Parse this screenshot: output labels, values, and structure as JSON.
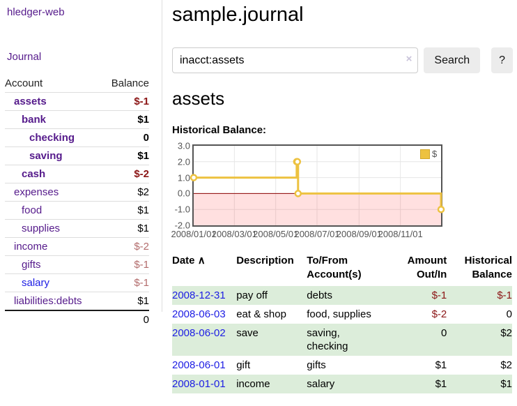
{
  "colors": {
    "link_purple": "#551a8b",
    "link_blue": "#1d1de4",
    "negative_strong": "#8b1515",
    "negative_soft": "#b36d6d",
    "row_shade_green": "#dcedda",
    "series_yellow": "#edc240",
    "zero_line": "#8b0000",
    "grid": "#e6e6e6",
    "plot_border": "#545454",
    "axis_text": "#545454"
  },
  "app": {
    "brand": "hledger-web"
  },
  "sidebar": {
    "nav": {
      "journal_label": "Journal"
    },
    "accounts": {
      "headers": {
        "account": "Account",
        "balance": "Balance"
      },
      "rows": [
        {
          "name": "assets",
          "balance": "$-1",
          "indent": 1,
          "bold": true,
          "negative": "neg-strong"
        },
        {
          "name": "bank",
          "balance": "$1",
          "indent": 2,
          "bold": true,
          "negative": ""
        },
        {
          "name": "checking",
          "balance": "0",
          "indent": 3,
          "bold": true,
          "negative": ""
        },
        {
          "name": "saving",
          "balance": "$1",
          "indent": 3,
          "bold": true,
          "negative": ""
        },
        {
          "name": "cash",
          "balance": "$-2",
          "indent": 2,
          "bold": true,
          "negative": "neg-strong"
        },
        {
          "name": "expenses",
          "balance": "$2",
          "indent": 1,
          "bold": false,
          "negative": ""
        },
        {
          "name": "food",
          "balance": "$1",
          "indent": 2,
          "bold": false,
          "negative": ""
        },
        {
          "name": "supplies",
          "balance": "$1",
          "indent": 2,
          "bold": false,
          "negative": ""
        },
        {
          "name": "income",
          "balance": "$-2",
          "indent": 1,
          "bold": false,
          "negative": "neg-soft"
        },
        {
          "name": "gifts",
          "balance": "$-1",
          "indent": 2,
          "bold": false,
          "negative": "neg-soft"
        },
        {
          "name": "salary",
          "balance": "$-1",
          "indent": 2,
          "bold": false,
          "negative": "neg-soft",
          "link": "blue"
        },
        {
          "name": "liabilities:debts",
          "balance": "$1",
          "indent": 1,
          "bold": false,
          "negative": ""
        }
      ],
      "total": "0"
    }
  },
  "main": {
    "title": "sample.journal",
    "search": {
      "value": "inacct:assets",
      "clear_icon": "×",
      "button_label": "Search",
      "help_label": "?"
    },
    "account_heading": "assets",
    "chart_label": "Historical Balance:"
  },
  "chart_data": {
    "type": "line",
    "style": "step",
    "title": "Historical Balance",
    "x_range": [
      "2008-01-01",
      "2008-12-31"
    ],
    "ylim": [
      -2,
      3
    ],
    "y_ticks": [
      3.0,
      2.0,
      1.0,
      0.0,
      -1.0,
      -2.0
    ],
    "x_tick_labels": [
      "2008/01/01",
      "2008/03/01",
      "2008/05/01",
      "2008/07/01",
      "2008/09/01",
      "2008/11/01"
    ],
    "grid": true,
    "negative_region_shaded": true,
    "legend": {
      "label": "$",
      "position": "top-right"
    },
    "series": [
      {
        "name": "$",
        "points": [
          {
            "x": "2008-01-01",
            "y": 1
          },
          {
            "x": "2008-06-01",
            "y": 2
          },
          {
            "x": "2008-06-02",
            "y": 2
          },
          {
            "x": "2008-06-03",
            "y": 0
          },
          {
            "x": "2008-12-31",
            "y": -1
          }
        ]
      }
    ]
  },
  "register": {
    "sort_icon": "∧",
    "headers": {
      "date": "Date",
      "description": "Description",
      "accounts": "To/From Account(s)",
      "amount": "Amount Out/In",
      "balance": "Historical Balance"
    },
    "rows": [
      {
        "date": "2008-12-31",
        "description": "pay off",
        "accounts": "debts",
        "amount": "$-1",
        "amount_negative": true,
        "balance": "$-1",
        "balance_negative": true,
        "shaded": true
      },
      {
        "date": "2008-06-03",
        "description": "eat & shop",
        "accounts": "food, supplies",
        "amount": "$-2",
        "amount_negative": true,
        "balance": "0",
        "balance_negative": false,
        "shaded": false
      },
      {
        "date": "2008-06-02",
        "description": "save",
        "accounts": "saving, checking",
        "amount": "0",
        "amount_negative": false,
        "balance": "$2",
        "balance_negative": false,
        "shaded": true
      },
      {
        "date": "2008-06-01",
        "description": "gift",
        "accounts": "gifts",
        "amount": "$1",
        "amount_negative": false,
        "balance": "$2",
        "balance_negative": false,
        "shaded": false
      },
      {
        "date": "2008-01-01",
        "description": "income",
        "accounts": "salary",
        "amount": "$1",
        "amount_negative": false,
        "balance": "$1",
        "balance_negative": false,
        "shaded": true
      }
    ]
  }
}
